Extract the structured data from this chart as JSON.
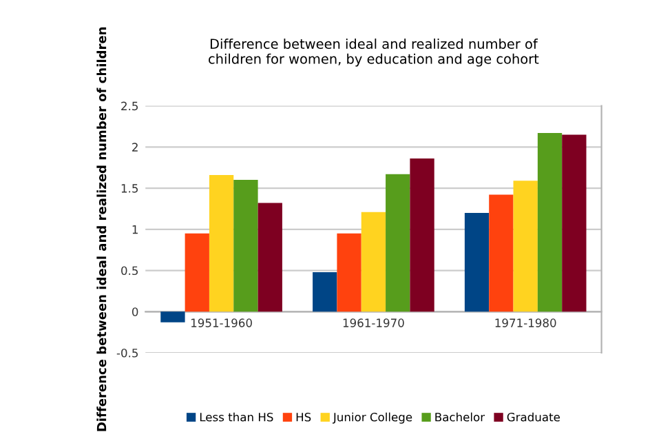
{
  "chart_data": {
    "type": "bar",
    "title": "Difference between ideal and realized number of\nchildren for women, by education and age cohort",
    "ylabel": "Difference between ideal and realized number of children",
    "categories": [
      "1951-1960",
      "1961-1970",
      "1971-1980"
    ],
    "series": [
      {
        "name": "Less than HS",
        "color": "#004586",
        "values": [
          -0.13,
          0.48,
          1.2
        ]
      },
      {
        "name": "HS",
        "color": "#ff420e",
        "values": [
          0.95,
          0.95,
          1.42
        ]
      },
      {
        "name": "Junior College",
        "color": "#ffd320",
        "values": [
          1.66,
          1.21,
          1.59
        ]
      },
      {
        "name": "Bachelor",
        "color": "#579d1c",
        "values": [
          1.6,
          1.67,
          2.17
        ]
      },
      {
        "name": "Graduate",
        "color": "#7e0021",
        "values": [
          1.32,
          1.86,
          2.15
        ]
      }
    ],
    "ylim": [
      -0.5,
      2.5
    ],
    "yticks": [
      -0.5,
      0,
      0.5,
      1,
      1.5,
      2,
      2.5
    ],
    "grid": "y",
    "legend": "bottom"
  }
}
